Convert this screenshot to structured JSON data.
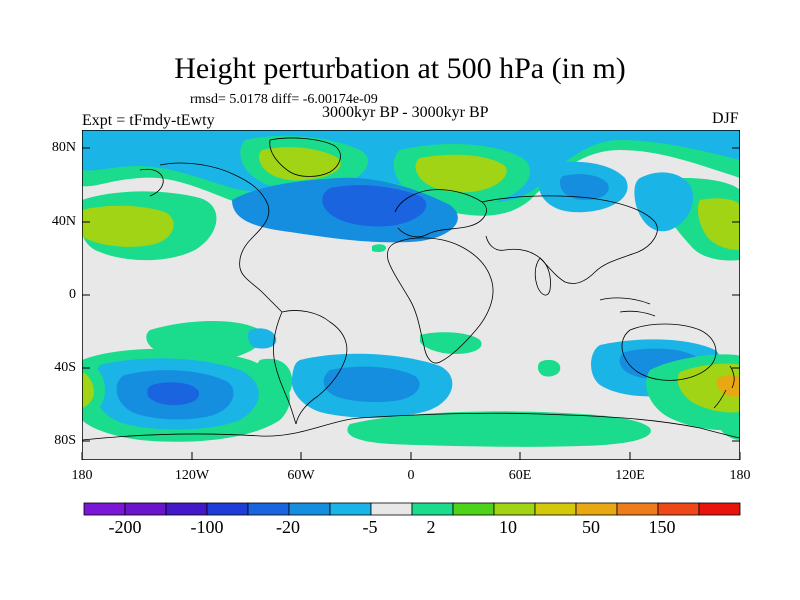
{
  "title": "Height perturbation at 500 hPa (in m)",
  "stats": "rmsd= 5.0178 diff= -6.00174e-09",
  "period": "3000kyr BP - 3000kyr BP",
  "experiment": "Expt = tFmdy-tEwty",
  "season": "DJF",
  "lat_labels": [
    "80N",
    "40N",
    "0",
    "40S",
    "80S"
  ],
  "lon_labels": [
    "180",
    "120W",
    "60W",
    "0",
    "60E",
    "120E",
    "180"
  ],
  "colorbar": {
    "labels": [
      "-200",
      "-100",
      "-20",
      "-5",
      "2",
      "10",
      "50",
      "150"
    ],
    "colors": [
      "#7a16d6",
      "#6a14cc",
      "#4218c8",
      "#1e3cd8",
      "#1a64e0",
      "#168ee0",
      "#1ab4e6",
      "#e8e8e8",
      "#1adc8c",
      "#4ed21a",
      "#a0d414",
      "#d4c80c",
      "#e8a814",
      "#ec7c1c",
      "#ec4818",
      "#e8140c"
    ]
  },
  "map_colors": {
    "ocean_background": "#e8e8e8",
    "light_blue": "#1ab4e6",
    "mid_blue": "#168ee0",
    "dark_blue": "#1a64e0",
    "deep_blue": "#1e3cd8",
    "teal_green": "#1adc8c",
    "yellow_green": "#a0d414",
    "orange": "#e8a814"
  }
}
